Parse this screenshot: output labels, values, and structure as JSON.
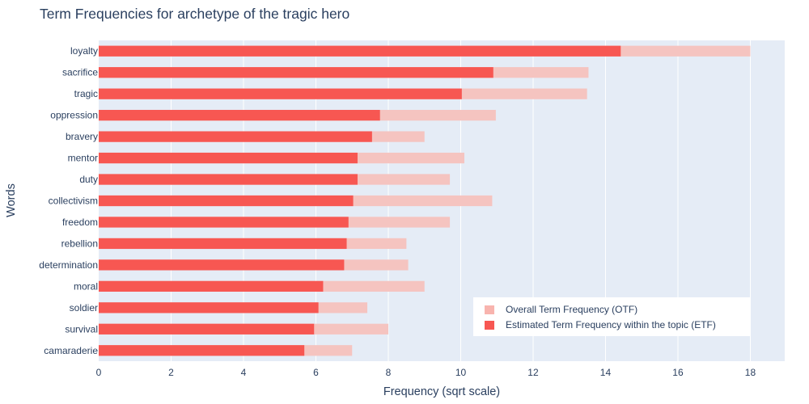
{
  "chart_data": {
    "type": "bar",
    "orientation": "horizontal",
    "barmode": "overlay",
    "title": "Term Frequencies for archetype of the tragic hero",
    "xlabel": "Frequency (sqrt scale)",
    "ylabel": "Words",
    "xlim": [
      0,
      18.95
    ],
    "xticks": [
      "0",
      "2",
      "4",
      "6",
      "8",
      "10",
      "12",
      "14",
      "16",
      "18"
    ],
    "categories": [
      "loyalty",
      "sacrifice",
      "tragic",
      "oppression",
      "bravery",
      "mentor",
      "duty",
      "collectivism",
      "freedom",
      "rebellion",
      "determination",
      "moral",
      "soldier",
      "survival",
      "camaraderie"
    ],
    "series": [
      {
        "name": "Overall Term Frequency (OTF)",
        "color": "#f5c4c0",
        "legend_color": "#f8b4ae",
        "values": [
          18.0,
          13.53,
          13.49,
          10.97,
          9.0,
          10.1,
          9.7,
          10.87,
          9.7,
          8.5,
          8.55,
          9.0,
          7.42,
          8.0,
          7.0
        ]
      },
      {
        "name": "Estimated Term Frequency within the topic (ETF)",
        "color": "#f75752",
        "legend_color": "#f75752",
        "values": [
          14.42,
          10.9,
          10.03,
          7.77,
          7.55,
          7.15,
          7.15,
          7.03,
          6.9,
          6.85,
          6.78,
          6.2,
          6.07,
          5.95,
          5.68
        ]
      }
    ],
    "grid": true,
    "plot_background": "#e5ecf6",
    "legend_position": "bottom-right"
  }
}
